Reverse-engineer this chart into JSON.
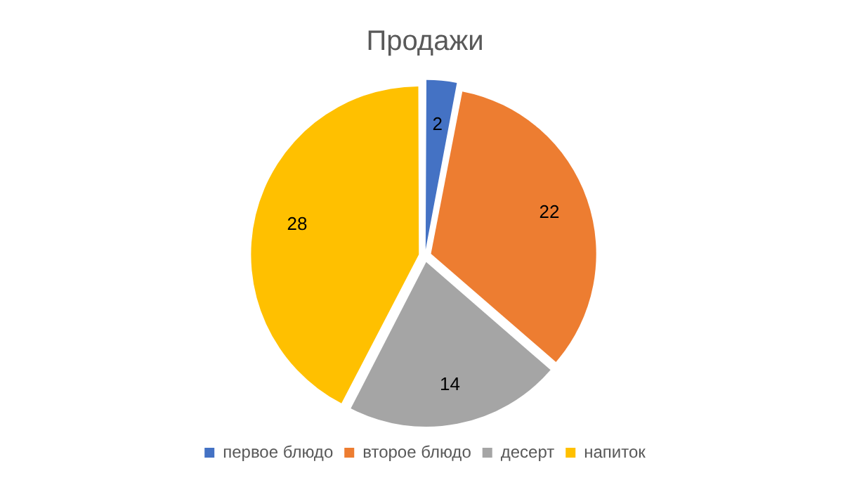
{
  "chart_data": {
    "type": "pie",
    "title": "Продажи",
    "categories": [
      "первое блюдо",
      "второе блюдо",
      "десерт",
      "напиток"
    ],
    "values": [
      2,
      22,
      14,
      28
    ],
    "colors": [
      "#4472c4",
      "#ed7d31",
      "#a5a5a5",
      "#ffc000"
    ],
    "data_labels": true,
    "legend": "bottom"
  }
}
